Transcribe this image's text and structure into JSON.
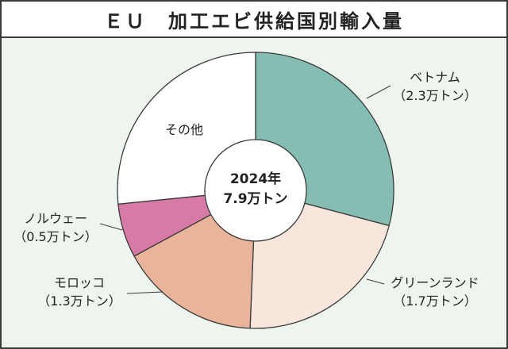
{
  "title": "ＥＵ　加工エビ供給国別輸入量",
  "chart_data": {
    "type": "pie",
    "variant": "donut",
    "title": "ＥＵ　加工エビ供給国別輸入量",
    "center_label": [
      "2024年",
      "7.9万トン"
    ],
    "slices": [
      {
        "name": "ベトナム",
        "value_label": "（2.3万トン）",
        "value": 2.3,
        "color": "#86bdb2"
      },
      {
        "name": "グリーンランド",
        "value_label": "（1.7万トン）",
        "value": 1.7,
        "color": "#f8e6dc"
      },
      {
        "name": "モロッコ",
        "value_label": "（1.3万トン）",
        "value": 1.3,
        "color": "#e9b49a"
      },
      {
        "name": "ノルウェー",
        "value_label": "（0.5万トン）",
        "value": 0.5,
        "color": "#d77aa6"
      },
      {
        "name": "その他",
        "value_label": "",
        "value": 2.1,
        "color": "#ffffff"
      }
    ]
  }
}
